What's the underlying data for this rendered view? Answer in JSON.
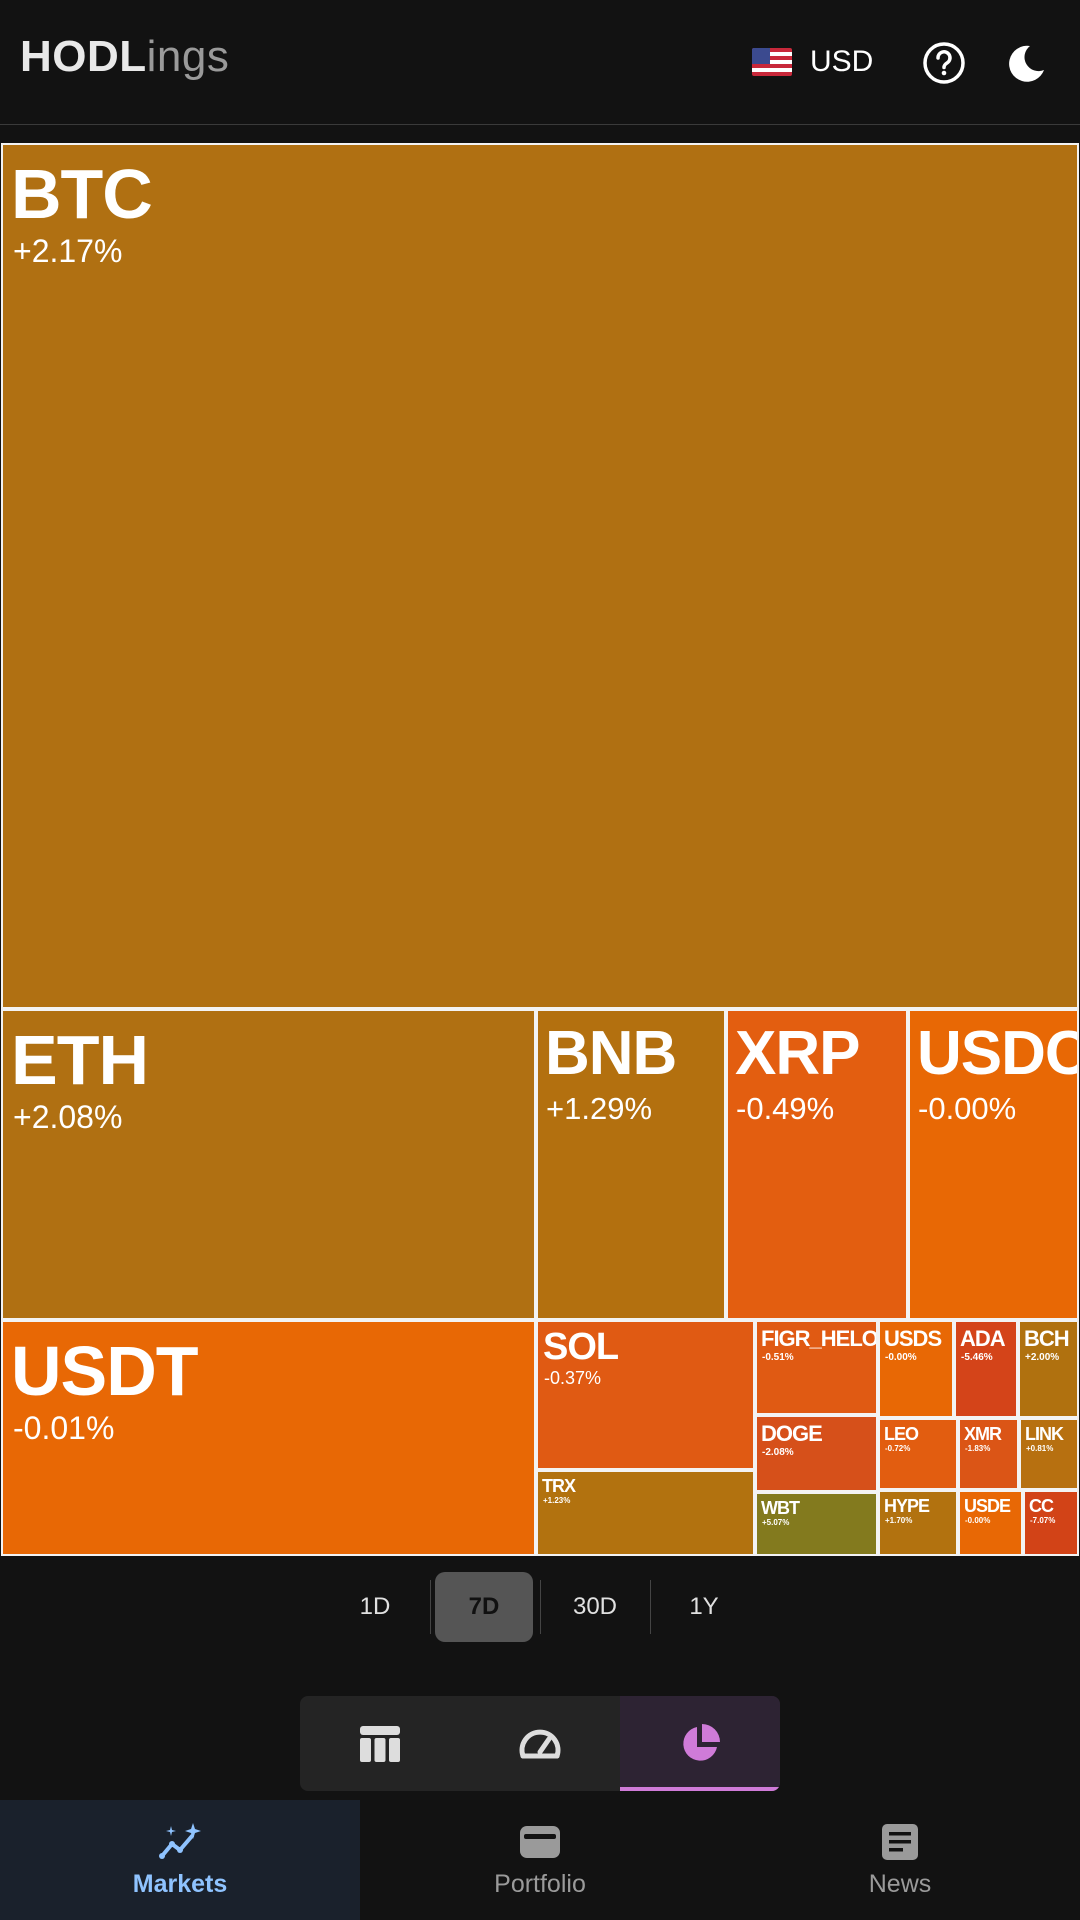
{
  "header": {
    "logo_bold": "HODL",
    "logo_light": "ings",
    "currency": "USD"
  },
  "treemap": {
    "colors": {
      "gain_gold": "#b07012",
      "loss_orange": "#e86805",
      "loss_red": "#d9511a",
      "strong_loss": "#d24317",
      "olive": "#837a1e"
    },
    "tiles": [
      {
        "symbol": "BTC",
        "change": "+2.17%"
      },
      {
        "symbol": "ETH",
        "change": "+2.08%"
      },
      {
        "symbol": "BNB",
        "change": "+1.29%"
      },
      {
        "symbol": "XRP",
        "change": "-0.49%"
      },
      {
        "symbol": "USDC",
        "change": "-0.00%"
      },
      {
        "symbol": "USDT",
        "change": "-0.01%"
      },
      {
        "symbol": "SOL",
        "change": "-0.37%"
      },
      {
        "symbol": "TRX",
        "change": "+1.23%"
      },
      {
        "symbol": "FIGR_HELOC",
        "change": "-0.51%"
      },
      {
        "symbol": "DOGE",
        "change": "-2.08%"
      },
      {
        "symbol": "WBT",
        "change": "+5.07%"
      },
      {
        "symbol": "USDS",
        "change": "-0.00%"
      },
      {
        "symbol": "ADA",
        "change": "-5.46%"
      },
      {
        "symbol": "BCH",
        "change": "+2.00%"
      },
      {
        "symbol": "LEO",
        "change": "-0.72%"
      },
      {
        "symbol": "XMR",
        "change": "-1.83%"
      },
      {
        "symbol": "LINK",
        "change": "+0.81%"
      },
      {
        "symbol": "HYPE",
        "change": "+1.70%"
      },
      {
        "symbol": "USDE",
        "change": "-0.00%"
      },
      {
        "symbol": "CC",
        "change": "-7.07%"
      }
    ]
  },
  "periods": {
    "selected": "7D",
    "options": [
      "1D",
      "7D",
      "30D",
      "1Y"
    ]
  },
  "view_toggle": {
    "selected": "treemap",
    "icons": [
      "table-icon",
      "gauge-icon",
      "pie-chart-icon"
    ]
  },
  "bottom_nav": {
    "markets": "Markets",
    "portfolio": "Portfolio",
    "news": "News"
  }
}
